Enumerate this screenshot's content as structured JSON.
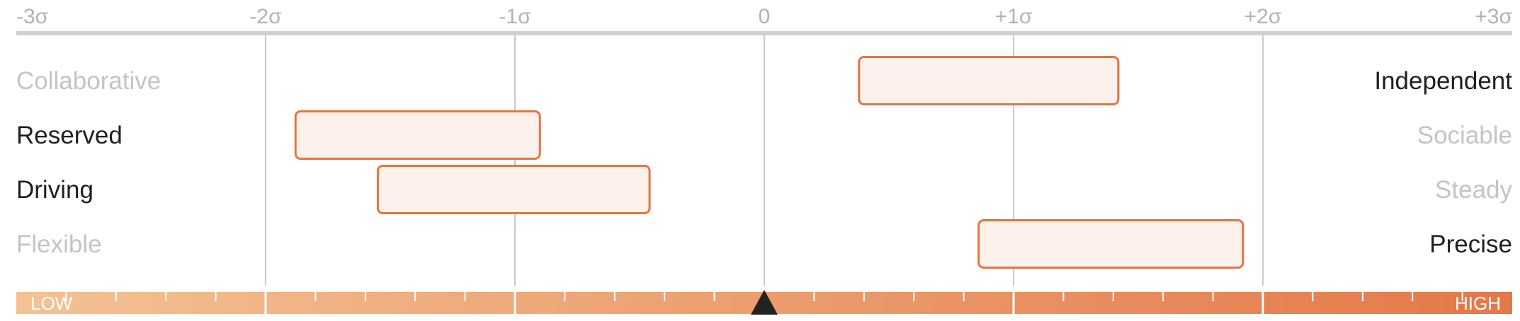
{
  "chart_data": {
    "type": "range-bar",
    "title": "",
    "xlim": [
      -3,
      3
    ],
    "ticks": [
      {
        "value": -3,
        "label": "-3σ"
      },
      {
        "value": -2,
        "label": "-2σ"
      },
      {
        "value": -1,
        "label": "-1σ"
      },
      {
        "value": 0,
        "label": "0"
      },
      {
        "value": 1,
        "label": "+1σ"
      },
      {
        "value": 2,
        "label": "+2σ"
      },
      {
        "value": 3,
        "label": "+3σ"
      }
    ],
    "rows": [
      {
        "left_label": "Collaborative",
        "right_label": "Independent",
        "range": [
          0.38,
          1.42
        ],
        "emphasis": "right"
      },
      {
        "left_label": "Reserved",
        "right_label": "Sociable",
        "range": [
          -1.88,
          -0.9
        ],
        "emphasis": "left"
      },
      {
        "left_label": "Driving",
        "right_label": "Steady",
        "range": [
          -1.55,
          -0.46
        ],
        "emphasis": "left"
      },
      {
        "left_label": "Flexible",
        "right_label": "Precise",
        "range": [
          0.86,
          1.92
        ],
        "emphasis": "right"
      }
    ],
    "scale_bar": {
      "low_label": "LOW",
      "high_label": "HIGH",
      "marker_value": 0,
      "gradient_colors": [
        "#f3c293",
        "#e4784a"
      ]
    },
    "colors": {
      "bar_fill": "#fdf1ec",
      "bar_stroke": "#e8733f",
      "grid": "#c8c8c8",
      "axis": "#d0d0d0",
      "marker": "#222222"
    },
    "grid": true
  }
}
